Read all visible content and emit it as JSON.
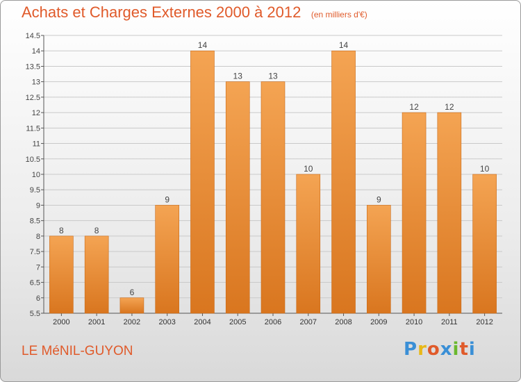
{
  "title": "Achats et Charges Externes 2000 à 2012",
  "unit_note": "(en milliers d'€)",
  "place_name": "LE MéNIL-GUYON",
  "logo_text": "Proxiti",
  "logo_colors": [
    "#3a8fd6",
    "#e8b818",
    "#e05a2a",
    "#3a8fd6",
    "#6ab82e",
    "#e05a2a",
    "#3a8fd6"
  ],
  "colors": {
    "bar_top": "#f4a453",
    "bar_bottom": "#d9761f",
    "title": "#e05a2a",
    "grid": "#c9c9c9"
  },
  "chart_data": {
    "type": "bar",
    "title": "Achats et Charges Externes 2000 à 2012",
    "categories": [
      "2000",
      "2001",
      "2002",
      "2003",
      "2004",
      "2005",
      "2006",
      "2007",
      "2008",
      "2009",
      "2010",
      "2011",
      "2012"
    ],
    "values": [
      8,
      8,
      6,
      9,
      14,
      13,
      13,
      10,
      14,
      9,
      12,
      12,
      10
    ],
    "data_labels": [
      "8",
      "8",
      "6",
      "9",
      "14",
      "13",
      "13",
      "10",
      "14",
      "9",
      "12",
      "12",
      "10"
    ],
    "ylim": [
      5.5,
      14.5
    ],
    "yticks": [
      5.5,
      6,
      6.5,
      7,
      7.5,
      8,
      8.5,
      9,
      9.5,
      10,
      10.5,
      11,
      11.5,
      12,
      12.5,
      13,
      13.5,
      14,
      14.5
    ],
    "ytick_labels": [
      "5.5",
      "6",
      "6.5",
      "7",
      "7.5",
      "8",
      "8.5",
      "9",
      "9.5",
      "10",
      "10.5",
      "11",
      "11.5",
      "12",
      "12.5",
      "13",
      "13.5",
      "14",
      "14.5"
    ],
    "grid": true,
    "xlabel": "",
    "ylabel": ""
  }
}
